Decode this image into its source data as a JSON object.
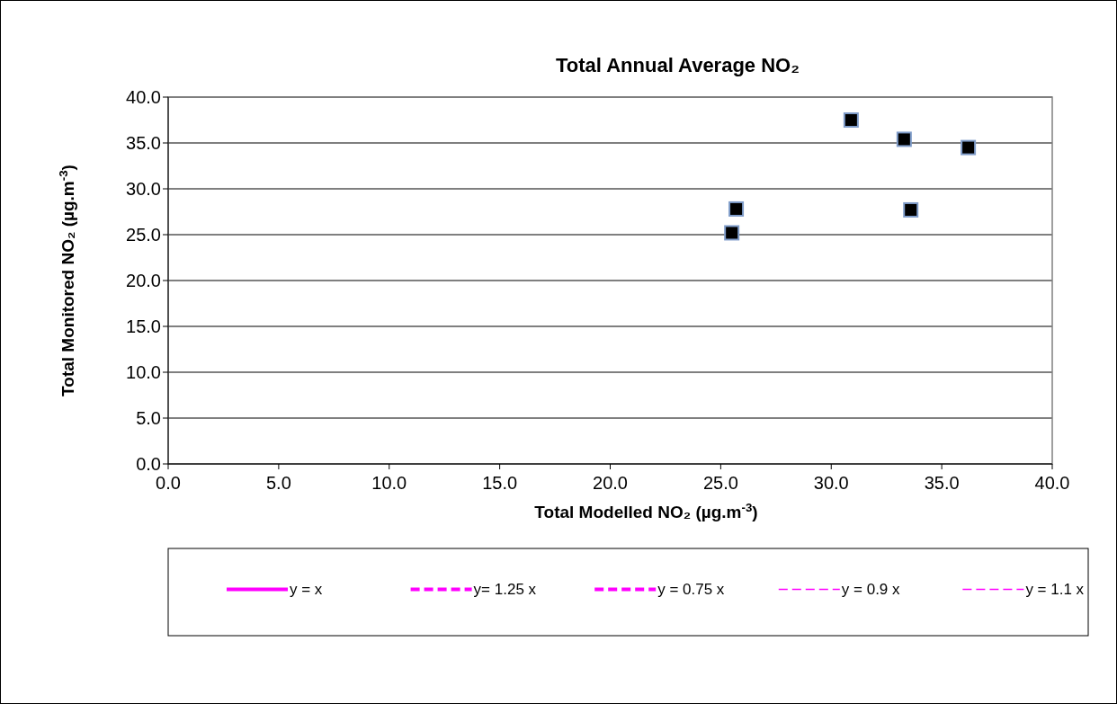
{
  "chart_data": {
    "type": "scatter",
    "title": "Total Annual Average NO₂",
    "xlabel": "Total Modelled NO₂ (µg.m$^{-3}$)",
    "ylabel": "Total Monitored NO₂ (µg.m$^{-3}$)",
    "xlim": [
      0,
      40
    ],
    "ylim": [
      0,
      40
    ],
    "xticks": [
      {
        "value": 0,
        "label": "0.0"
      },
      {
        "value": 5,
        "label": "5.0"
      },
      {
        "value": 10,
        "label": "10.0"
      },
      {
        "value": 15,
        "label": "15.0"
      },
      {
        "value": 20,
        "label": "20.0"
      },
      {
        "value": 25,
        "label": "25.0"
      },
      {
        "value": 30,
        "label": "30.0"
      },
      {
        "value": 35,
        "label": "35.0"
      },
      {
        "value": 40,
        "label": "40.0"
      }
    ],
    "yticks": [
      {
        "value": 0,
        "label": "0.0"
      },
      {
        "value": 5,
        "label": "5.0"
      },
      {
        "value": 10,
        "label": "10.0"
      },
      {
        "value": 15,
        "label": "15.0"
      },
      {
        "value": 20,
        "label": "20.0"
      },
      {
        "value": 25,
        "label": "25.0"
      },
      {
        "value": 30,
        "label": "30.0"
      },
      {
        "value": 35,
        "label": "35.0"
      },
      {
        "value": 40,
        "label": "40.0"
      }
    ],
    "grid": "y",
    "legend": "bottom",
    "marker": "square",
    "series": [
      {
        "color": "#000000",
        "x": [
          25.7,
          25.5,
          30.9,
          33.3,
          33.6,
          36.2
        ],
        "values": [
          27.8,
          25.2,
          37.5,
          35.4,
          27.7,
          34.5
        ]
      },
      {
        "type": "line",
        "name": "y = x",
        "color": "#ff00ff",
        "line_style": "solid"
      },
      {
        "type": "line",
        "name": "y= 1.25 x",
        "color": "#ff00ff",
        "line_style": "dashed"
      },
      {
        "type": "line",
        "name": "y = 0.75 x",
        "color": "#ff00ff",
        "line_style": "dashed"
      },
      {
        "type": "line",
        "name": "y = 0.9 x",
        "color": "#ff00ff",
        "line_style": "dashed"
      },
      {
        "type": "line",
        "name": "y = 1.1 x",
        "color": "#ff00ff",
        "line_style": "dashed"
      }
    ]
  }
}
